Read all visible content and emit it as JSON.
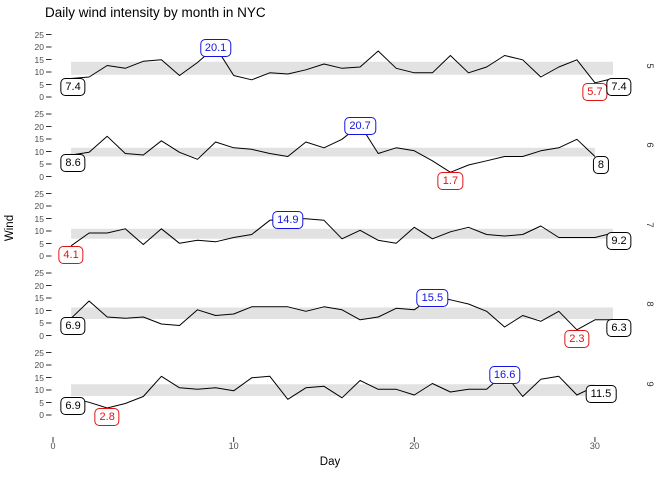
{
  "title": "Daily wind intensity by month in NYC",
  "axes": {
    "x_label": "Day",
    "y_label": "Wind",
    "x_ticks": [
      "0",
      "10",
      "20",
      "30"
    ],
    "y_ticks": [
      "25",
      "20",
      "15",
      "10",
      "5",
      "0"
    ]
  },
  "colors": {
    "line": "#000000",
    "band": "#E2E2E2",
    "first_last_label": "#000000",
    "max_label": "#1414E0",
    "min_label": "#E01414",
    "tick_text": "#4D4D4D",
    "strip_text": "#333333"
  },
  "chart_data": {
    "type": "line",
    "x_field": "Day",
    "y_field": "Wind",
    "x_range": [
      0,
      31
    ],
    "y_ticks": [
      25,
      20,
      15,
      10,
      5,
      0
    ],
    "x_tick_values": [
      0,
      10,
      20,
      30
    ],
    "grid": false,
    "facet_side": "right",
    "facets": [
      {
        "label": "5",
        "month_name": "May",
        "n_days": 31,
        "band_iqr": [
          8.9,
          14.1
        ],
        "values": [
          7.4,
          8.0,
          12.6,
          11.5,
          14.3,
          14.9,
          8.6,
          13.8,
          20.1,
          8.6,
          6.9,
          9.7,
          9.2,
          10.9,
          13.2,
          11.5,
          12.0,
          18.4,
          11.5,
          9.7,
          9.7,
          16.6,
          9.7,
          12.0,
          16.6,
          14.9,
          8.0,
          12.0,
          14.9,
          5.7,
          7.4
        ],
        "annotations": {
          "min": {
            "day": 30,
            "value": 5.7,
            "text": "5.7"
          },
          "max": {
            "day": 9,
            "value": 20.1,
            "text": "20.1"
          },
          "first": {
            "day": 1,
            "value": 7.4,
            "text": "7.4"
          },
          "last": {
            "day": 31,
            "value": 7.4,
            "text": "7.4"
          }
        }
      },
      {
        "label": "6",
        "month_name": "June",
        "n_days": 30,
        "band_iqr": [
          8.0,
          11.5
        ],
        "values": [
          8.6,
          9.7,
          16.1,
          9.2,
          8.6,
          14.3,
          9.7,
          6.9,
          13.8,
          11.5,
          10.9,
          9.2,
          8.0,
          13.8,
          11.5,
          14.9,
          20.7,
          9.2,
          11.5,
          10.3,
          6.3,
          1.7,
          4.6,
          6.3,
          8.0,
          8.0,
          10.3,
          11.5,
          14.9,
          8.0
        ],
        "annotations": {
          "min": {
            "day": 22,
            "value": 1.7,
            "text": "1.7"
          },
          "max": {
            "day": 17,
            "value": 20.7,
            "text": "20.7"
          },
          "first": {
            "day": 1,
            "value": 8.6,
            "text": "8.6"
          },
          "last": {
            "day": 30,
            "value": 8.0,
            "text": "8"
          }
        }
      },
      {
        "label": "7",
        "month_name": "July",
        "n_days": 31,
        "band_iqr": [
          6.9,
          10.9
        ],
        "values": [
          4.1,
          9.2,
          9.2,
          10.9,
          4.6,
          10.9,
          5.1,
          6.3,
          5.7,
          7.4,
          8.6,
          14.3,
          14.9,
          14.9,
          14.3,
          6.9,
          10.3,
          6.3,
          5.1,
          11.5,
          6.9,
          9.7,
          11.5,
          8.6,
          8.0,
          8.6,
          12.0,
          7.4,
          7.4,
          7.4,
          9.2
        ],
        "annotations": {
          "min": {
            "day": 1,
            "value": 4.1,
            "text": "4.1"
          },
          "max": {
            "day": 13,
            "value": 14.9,
            "text": "14.9"
          },
          "last": {
            "day": 31,
            "value": 9.2,
            "text": "9.2"
          }
        }
      },
      {
        "label": "8",
        "month_name": "August",
        "n_days": 31,
        "band_iqr": [
          6.6,
          11.2
        ],
        "values": [
          6.9,
          13.8,
          7.4,
          6.9,
          7.4,
          4.6,
          4.0,
          10.3,
          8.0,
          8.6,
          11.5,
          11.5,
          11.5,
          9.7,
          11.5,
          10.3,
          6.3,
          7.4,
          10.9,
          10.3,
          15.5,
          14.3,
          12.6,
          9.7,
          3.4,
          8.0,
          5.7,
          9.7,
          2.3,
          6.3,
          6.3
        ],
        "annotations": {
          "min": {
            "day": 29,
            "value": 2.3,
            "text": "2.3"
          },
          "max": {
            "day": 21,
            "value": 15.5,
            "text": "15.5"
          },
          "first": {
            "day": 1,
            "value": 6.9,
            "text": "6.9"
          },
          "last": {
            "day": 31,
            "value": 6.3,
            "text": "6.3"
          }
        }
      },
      {
        "label": "9",
        "month_name": "September",
        "n_days": 30,
        "band_iqr": [
          7.6,
          12.3
        ],
        "values": [
          6.9,
          5.1,
          2.8,
          4.6,
          7.4,
          15.5,
          10.9,
          10.3,
          10.9,
          9.7,
          14.9,
          15.5,
          6.3,
          10.9,
          11.5,
          6.9,
          13.8,
          10.3,
          10.3,
          8.0,
          12.6,
          9.2,
          10.3,
          10.3,
          16.6,
          7.4,
          14.3,
          15.5,
          8.0,
          11.5
        ],
        "annotations": {
          "min": {
            "day": 3,
            "value": 2.8,
            "text": "2.8"
          },
          "max": {
            "day": 25,
            "value": 16.6,
            "text": "16.6"
          },
          "first": {
            "day": 1,
            "value": 6.9,
            "text": "6.9"
          },
          "last": {
            "day": 30,
            "value": 11.5,
            "text": "11.5"
          }
        }
      }
    ]
  }
}
